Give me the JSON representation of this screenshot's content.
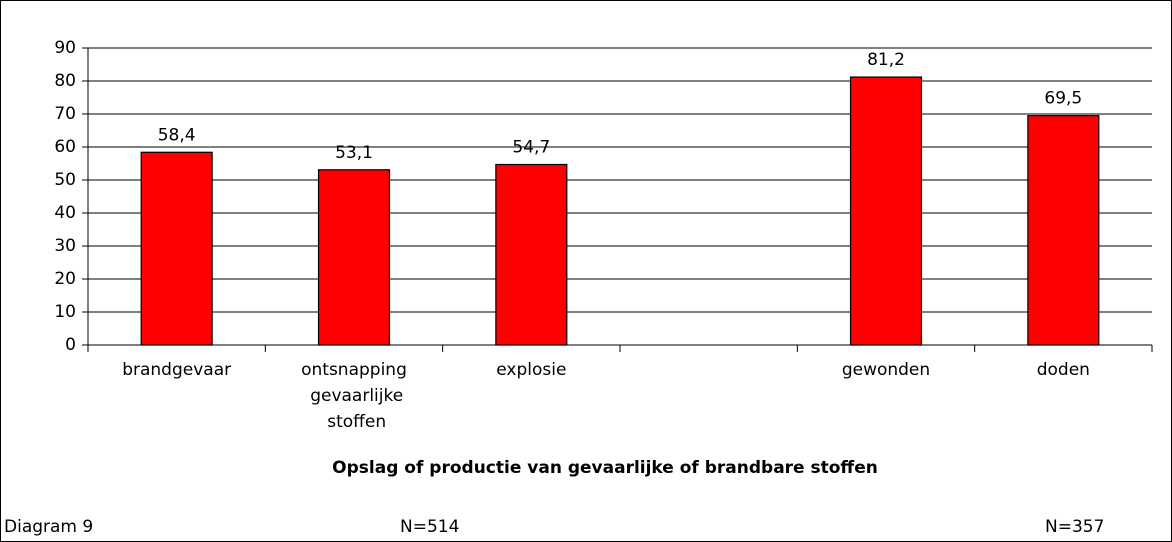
{
  "chart_data": {
    "type": "bar",
    "title": "Opslag of productie van gevaarlijke of brandbare stoffen",
    "categories": [
      "brandgevaar",
      "ontsnapping gevaarlijke stoffen",
      "explosie",
      null,
      "gewonden",
      "doden"
    ],
    "values": [
      58.4,
      53.1,
      54.7,
      null,
      81.2,
      69.5
    ],
    "value_labels": [
      "58,4",
      "53,1",
      "54,7",
      null,
      "81,2",
      "69,5"
    ],
    "color": "#ff0000",
    "ylim": [
      0,
      90
    ],
    "yticks": [
      0,
      10,
      20,
      30,
      40,
      50,
      60,
      70,
      80,
      90
    ],
    "grid": true
  },
  "footer": {
    "label": "Diagram 9",
    "notes": [
      "N=514",
      "N=357"
    ]
  }
}
